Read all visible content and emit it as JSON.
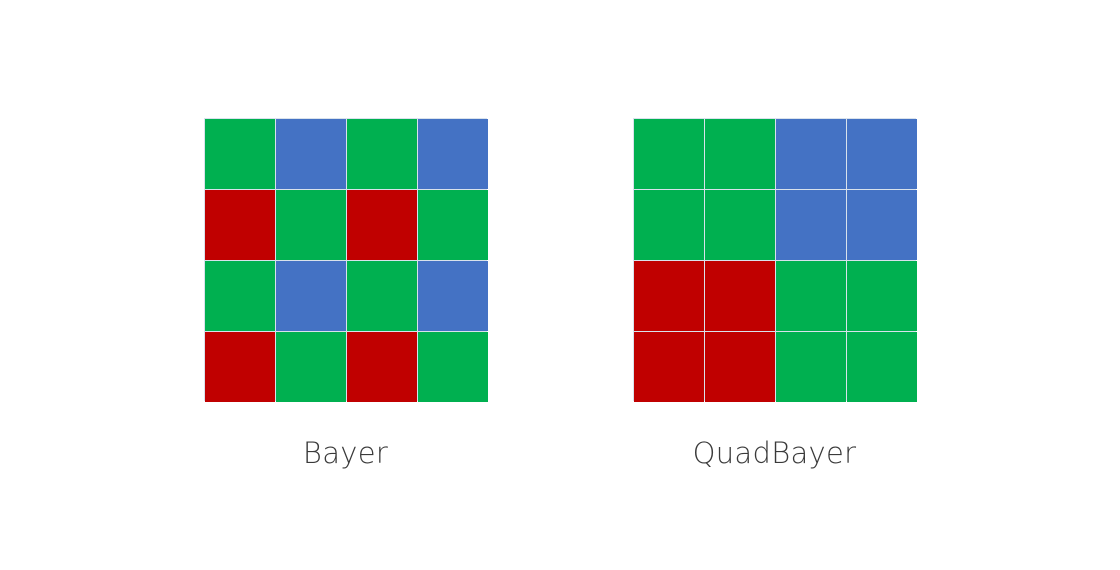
{
  "colors": {
    "G": "#00b050",
    "B": "#4472c4",
    "R": "#c00000"
  },
  "patterns": [
    {
      "label": "Bayer",
      "cells": [
        [
          "G",
          "B",
          "G",
          "B"
        ],
        [
          "R",
          "G",
          "R",
          "G"
        ],
        [
          "G",
          "B",
          "G",
          "B"
        ],
        [
          "R",
          "G",
          "R",
          "G"
        ]
      ]
    },
    {
      "label": "QuadBayer",
      "cells": [
        [
          "G",
          "G",
          "B",
          "B"
        ],
        [
          "G",
          "G",
          "B",
          "B"
        ],
        [
          "R",
          "R",
          "G",
          "G"
        ],
        [
          "R",
          "R",
          "G",
          "G"
        ]
      ]
    }
  ]
}
